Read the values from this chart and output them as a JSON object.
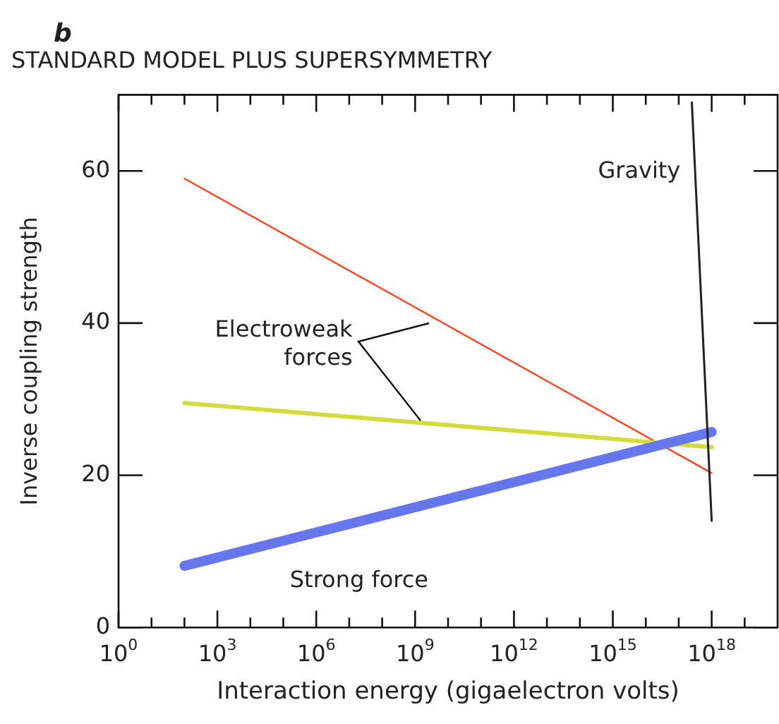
{
  "chart_data": {
    "type": "line",
    "title": "STANDARD MODEL PLUS SUPERSYMMETRY",
    "xlabel": "Interaction energy (gigaelectron volts)",
    "ylabel": "Inverse coupling strength",
    "log": "x",
    "grid": false,
    "legend": false,
    "marker": "none",
    "line_style": "solid",
    "xlim": [
      1,
      1e+20
    ],
    "ylim": [
      0,
      70
    ],
    "xticks": [
      {
        "value": 1,
        "label": "10$^{0}$"
      },
      {
        "value": 10,
        "label": null
      },
      {
        "value": 100,
        "label": null
      },
      {
        "value": 1000,
        "label": "10$^{3}$"
      },
      {
        "value": 10000.0,
        "label": null
      },
      {
        "value": 100000.0,
        "label": null
      },
      {
        "value": 1000000.0,
        "label": "10$^{6}$"
      },
      {
        "value": 10000000.0,
        "label": null
      },
      {
        "value": 100000000.0,
        "label": null
      },
      {
        "value": 1000000000.0,
        "label": "10$^{9}$"
      },
      {
        "value": 10000000000.0,
        "label": null
      },
      {
        "value": 100000000000.0,
        "label": null
      },
      {
        "value": 1000000000000.0,
        "label": "10$^{12}$"
      },
      {
        "value": 10000000000000.0,
        "label": null
      },
      {
        "value": 100000000000000.0,
        "label": null
      },
      {
        "value": 1000000000000000.0,
        "label": "10$^{15}$"
      },
      {
        "value": 1e+16,
        "label": null
      },
      {
        "value": 1e+17,
        "label": null
      },
      {
        "value": 1e+18,
        "label": "10$^{18}$"
      },
      {
        "value": 1e+19,
        "label": null
      }
    ],
    "yticks": [
      0,
      20,
      40,
      60
    ],
    "series": [
      {
        "color": "#ff4422",
        "x": [
          100,
          1e+18
        ],
        "values": [
          59,
          20.3
        ]
      },
      {
        "color": "#d4dc3c",
        "x": [
          100,
          1e+18
        ],
        "values": [
          29.5,
          23.7
        ]
      },
      {
        "color": "#6677ee",
        "x": [
          100,
          1e+18
        ],
        "values": [
          8.1,
          25.7
        ]
      },
      {
        "color": "#222222",
        "x": [
          2.5e+17,
          1e+18
        ],
        "values": [
          69,
          14
        ]
      }
    ],
    "annotations": [
      "b",
      "Gravity",
      "Electroweak forces",
      "Strong force"
    ]
  }
}
